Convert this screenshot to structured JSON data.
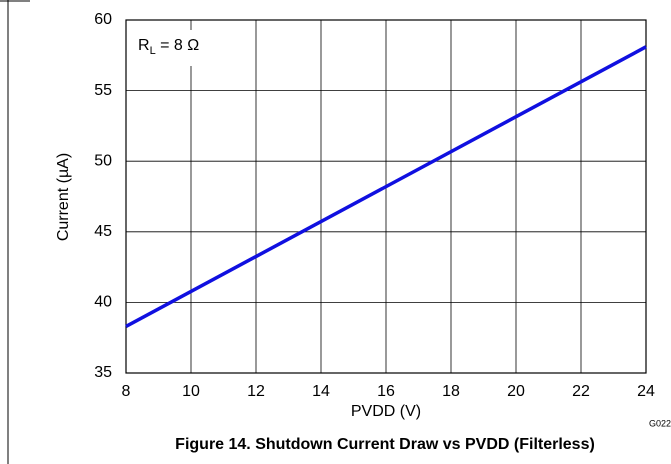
{
  "chart_data": {
    "type": "line",
    "title": "Figure 14. Shutdown Current Draw vs PVDD (Filterless)",
    "xlabel": "PVDD (V)",
    "ylabel": "Current (µA)",
    "annotation": {
      "symbol": "R",
      "subscript": "L",
      "text": " = 8 Ω"
    },
    "graph_id": "G022",
    "x": [
      8,
      24
    ],
    "series": [
      {
        "name": "RL = 8 Ω",
        "color": "#1010e0",
        "values": [
          38.3,
          58.1
        ]
      }
    ],
    "xlim": [
      8,
      24
    ],
    "xticks": [
      8,
      10,
      12,
      14,
      16,
      18,
      20,
      22,
      24
    ],
    "ylim": [
      35,
      60
    ],
    "yticks": [
      35,
      40,
      45,
      50,
      55,
      60
    ],
    "grid": true
  }
}
